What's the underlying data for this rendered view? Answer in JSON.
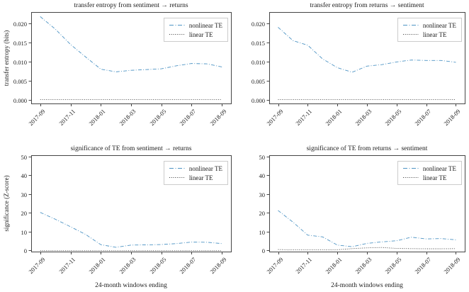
{
  "figure": {
    "xlabel": "24-month windows ending",
    "x_tick_labels": [
      "2017-09",
      "2017-11",
      "2018-01",
      "2018-03",
      "2018-05",
      "2018-07",
      "2018-09"
    ],
    "background": "#ffffff"
  },
  "colors": {
    "nonlinear_line": "#4e94c4",
    "linear_line": "#3f3f3f",
    "frame": "#454545",
    "text": "#1c1c1c",
    "legend_border": "#cccccc"
  },
  "chart_data": [
    {
      "type": "line",
      "title": "transfer entropy from sentiment → returns",
      "ylabel": "transfer entropy (bits)",
      "x": [
        "2017-09",
        "2017-10",
        "2017-11",
        "2017-12",
        "2018-01",
        "2018-02",
        "2018-03",
        "2018-04",
        "2018-05",
        "2018-06",
        "2018-07",
        "2018-08",
        "2018-09"
      ],
      "yticks": [
        0.0,
        0.005,
        0.01,
        0.015,
        0.02
      ],
      "ytick_decimals": 3,
      "ylim": [
        -0.001,
        0.023
      ],
      "grid": false,
      "legend_position": "upper right",
      "series": [
        {
          "name": "nonlinear TE",
          "style": "dashdot",
          "values": [
            0.0218,
            0.0185,
            0.0145,
            0.0112,
            0.008,
            0.0073,
            0.0077,
            0.0079,
            0.0081,
            0.0089,
            0.0095,
            0.0094,
            0.0086
          ]
        },
        {
          "name": "linear TE",
          "style": "dotted",
          "values": [
            0.0,
            0.0,
            0.0,
            0.0,
            0.0,
            0.0,
            0.0,
            0.0,
            0.0,
            0.0,
            0.0,
            0.0,
            0.0
          ]
        }
      ]
    },
    {
      "type": "line",
      "title": "transfer entropy from returns → sentiment",
      "ylabel": "",
      "x": [
        "2017-09",
        "2017-10",
        "2017-11",
        "2017-12",
        "2018-01",
        "2018-02",
        "2018-03",
        "2018-04",
        "2018-05",
        "2018-06",
        "2018-07",
        "2018-08",
        "2018-09"
      ],
      "yticks": [
        0.0,
        0.005,
        0.01,
        0.015,
        0.02
      ],
      "ytick_decimals": 3,
      "ylim": [
        -0.001,
        0.023
      ],
      "grid": false,
      "legend_position": "upper right",
      "series": [
        {
          "name": "nonlinear TE",
          "style": "dashdot",
          "values": [
            0.019,
            0.0155,
            0.0143,
            0.0107,
            0.0084,
            0.0072,
            0.0088,
            0.0092,
            0.0099,
            0.0104,
            0.0103,
            0.0103,
            0.0098
          ]
        },
        {
          "name": "linear TE",
          "style": "dotted",
          "values": [
            0.0,
            0.0,
            0.0,
            0.0,
            0.0,
            0.0,
            0.0,
            0.0,
            0.0,
            0.0,
            0.0,
            0.0,
            0.0
          ]
        }
      ]
    },
    {
      "type": "line",
      "title": "significance of TE from sentiment → returns",
      "ylabel": "significance (Z-score)",
      "x": [
        "2017-09",
        "2017-10",
        "2017-11",
        "2017-12",
        "2018-01",
        "2018-02",
        "2018-03",
        "2018-04",
        "2018-05",
        "2018-06",
        "2018-07",
        "2018-08",
        "2018-09"
      ],
      "yticks": [
        0,
        10,
        20,
        30,
        40,
        50
      ],
      "ytick_decimals": 0,
      "ylim": [
        -0.8,
        50.8
      ],
      "grid": false,
      "legend_position": "upper right",
      "series": [
        {
          "name": "nonlinear TE",
          "style": "dashdot",
          "values": [
            20.2,
            16.5,
            12.5,
            8.4,
            2.9,
            1.5,
            2.7,
            2.8,
            3.0,
            3.5,
            4.3,
            4.2,
            3.5
          ]
        },
        {
          "name": "linear TE",
          "style": "dotted",
          "values": [
            -0.3,
            -0.3,
            -0.3,
            -0.3,
            -0.3,
            -0.3,
            -0.3,
            -0.3,
            -0.3,
            -0.3,
            -0.3,
            -0.3,
            -0.3
          ]
        }
      ]
    },
    {
      "type": "line",
      "title": "significance of TE from returns → sentiment",
      "ylabel": "",
      "x": [
        "2017-09",
        "2017-10",
        "2017-11",
        "2017-12",
        "2018-01",
        "2018-02",
        "2018-03",
        "2018-04",
        "2018-05",
        "2018-06",
        "2018-07",
        "2018-08",
        "2018-09"
      ],
      "yticks": [
        0,
        10,
        20,
        30,
        40,
        50
      ],
      "ytick_decimals": 0,
      "ylim": [
        -0.8,
        50.8
      ],
      "grid": false,
      "legend_position": "upper right",
      "series": [
        {
          "name": "nonlinear TE",
          "style": "dashdot",
          "values": [
            21.2,
            15.0,
            8.0,
            7.1,
            2.7,
            1.8,
            3.6,
            4.4,
            5.0,
            6.9,
            6.0,
            6.2,
            5.5
          ]
        },
        {
          "name": "linear TE",
          "style": "dotted",
          "values": [
            0.3,
            0.1,
            0.1,
            0.1,
            0.2,
            0.8,
            1.2,
            1.4,
            0.9,
            0.8,
            0.7,
            0.7,
            0.8
          ]
        }
      ]
    }
  ]
}
